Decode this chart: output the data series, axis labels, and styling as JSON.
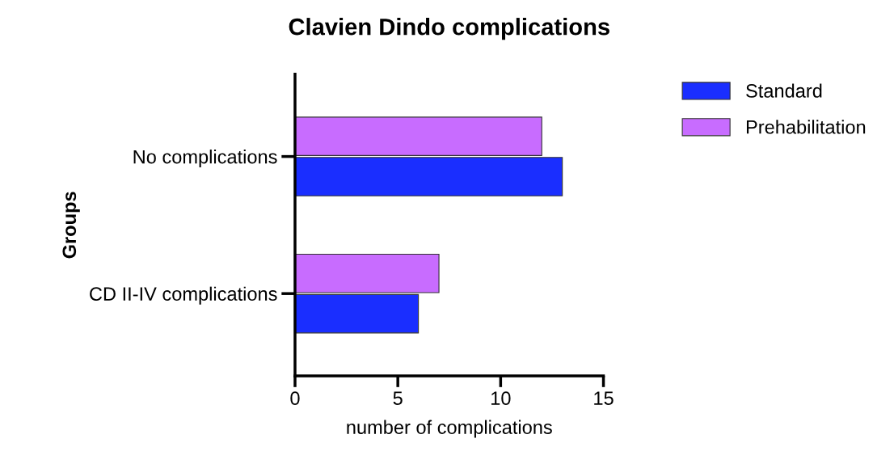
{
  "chart_data": {
    "type": "bar",
    "orientation": "horizontal",
    "title": "Clavien Dindo complications",
    "xlabel": "number of complications",
    "ylabel": "Groups",
    "categories": [
      "No complications",
      "CD II-IV complications"
    ],
    "series": [
      {
        "name": "Standard",
        "color": "#1a2eff",
        "values": [
          13,
          6
        ]
      },
      {
        "name": "Prehabilitation",
        "color": "#c86cff",
        "values": [
          12,
          7
        ]
      }
    ],
    "xlim": [
      0,
      15
    ],
    "xticks": [
      0,
      5,
      10,
      15
    ],
    "grid": false,
    "legend": "right"
  }
}
